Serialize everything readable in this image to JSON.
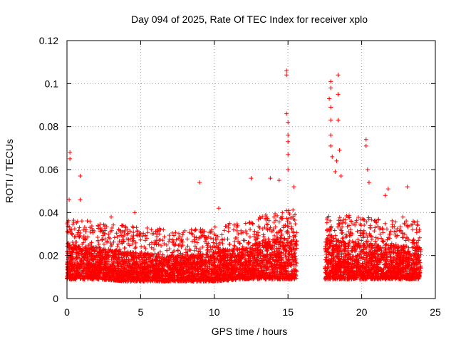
{
  "chart_data": {
    "type": "scatter",
    "title": "Day 094 of 2025, Rate Of TEC Index for receiver xplo",
    "xlabel": "GPS time / hours",
    "ylabel": "ROTI / TECUs",
    "xlim": [
      0,
      25
    ],
    "ylim": [
      0,
      0.12
    ],
    "x_ticks": [
      0,
      5,
      10,
      15,
      20,
      25
    ],
    "x_tick_labels": [
      "0",
      "5",
      "10",
      "15",
      "20",
      "25"
    ],
    "y_ticks": [
      0,
      0.02,
      0.04,
      0.06,
      0.08,
      0.1,
      0.12
    ],
    "y_tick_labels": [
      "0",
      "0.02",
      "0.04",
      "0.06",
      "0.08",
      "0.1",
      "0.12"
    ],
    "grid": true,
    "marker": "+",
    "color": "#ff0000",
    "series": [
      {
        "name": "ROTI",
        "segments": [
          {
            "x_start": 0.0,
            "x_end": 15.6,
            "typical_range": [
              0.007,
              0.025
            ]
          },
          {
            "x_start": 17.5,
            "x_end": 24.0,
            "typical_range": [
              0.007,
              0.025
            ]
          }
        ],
        "notable_points": [
          {
            "x": 0.2,
            "y": 0.068
          },
          {
            "x": 0.2,
            "y": 0.065
          },
          {
            "x": 0.15,
            "y": 0.046
          },
          {
            "x": 0.9,
            "y": 0.057
          },
          {
            "x": 0.9,
            "y": 0.046
          },
          {
            "x": 3.0,
            "y": 0.038
          },
          {
            "x": 4.6,
            "y": 0.04
          },
          {
            "x": 9.0,
            "y": 0.054
          },
          {
            "x": 10.3,
            "y": 0.042
          },
          {
            "x": 12.5,
            "y": 0.056
          },
          {
            "x": 13.8,
            "y": 0.056
          },
          {
            "x": 14.4,
            "y": 0.055
          },
          {
            "x": 14.9,
            "y": 0.106
          },
          {
            "x": 14.9,
            "y": 0.104
          },
          {
            "x": 14.9,
            "y": 0.086
          },
          {
            "x": 15.0,
            "y": 0.082
          },
          {
            "x": 15.0,
            "y": 0.076
          },
          {
            "x": 15.0,
            "y": 0.073
          },
          {
            "x": 15.0,
            "y": 0.067
          },
          {
            "x": 15.0,
            "y": 0.06
          },
          {
            "x": 15.4,
            "y": 0.052
          },
          {
            "x": 17.9,
            "y": 0.101
          },
          {
            "x": 17.9,
            "y": 0.098
          },
          {
            "x": 17.8,
            "y": 0.093
          },
          {
            "x": 17.9,
            "y": 0.089
          },
          {
            "x": 17.9,
            "y": 0.083
          },
          {
            "x": 17.9,
            "y": 0.076
          },
          {
            "x": 17.9,
            "y": 0.071
          },
          {
            "x": 18.4,
            "y": 0.104
          },
          {
            "x": 18.4,
            "y": 0.095
          },
          {
            "x": 18.4,
            "y": 0.083
          },
          {
            "x": 18.0,
            "y": 0.066
          },
          {
            "x": 18.3,
            "y": 0.064
          },
          {
            "x": 18.5,
            "y": 0.069
          },
          {
            "x": 18.2,
            "y": 0.059
          },
          {
            "x": 18.6,
            "y": 0.057
          },
          {
            "x": 20.3,
            "y": 0.074
          },
          {
            "x": 20.3,
            "y": 0.071
          },
          {
            "x": 20.4,
            "y": 0.06
          },
          {
            "x": 20.5,
            "y": 0.054
          },
          {
            "x": 21.8,
            "y": 0.051
          },
          {
            "x": 21.6,
            "y": 0.048
          },
          {
            "x": 23.1,
            "y": 0.052
          },
          {
            "x": 22.8,
            "y": 0.038
          },
          {
            "x": 23.5,
            "y": 0.036
          }
        ],
        "quiet_envelope": [
          {
            "x": 0.0,
            "y_low": 0.009,
            "y_high": 0.025
          },
          {
            "x": 2.0,
            "y_low": 0.009,
            "y_high": 0.024
          },
          {
            "x": 4.0,
            "y_low": 0.008,
            "y_high": 0.022
          },
          {
            "x": 6.0,
            "y_low": 0.008,
            "y_high": 0.021
          },
          {
            "x": 8.0,
            "y_low": 0.008,
            "y_high": 0.02
          },
          {
            "x": 10.0,
            "y_low": 0.008,
            "y_high": 0.022
          },
          {
            "x": 12.0,
            "y_low": 0.009,
            "y_high": 0.024
          },
          {
            "x": 14.0,
            "y_low": 0.009,
            "y_high": 0.028
          },
          {
            "x": 15.6,
            "y_low": 0.009,
            "y_high": 0.03
          },
          {
            "x": 17.5,
            "y_low": 0.009,
            "y_high": 0.028
          },
          {
            "x": 20.0,
            "y_low": 0.009,
            "y_high": 0.026
          },
          {
            "x": 22.0,
            "y_low": 0.009,
            "y_high": 0.025
          },
          {
            "x": 24.0,
            "y_low": 0.009,
            "y_high": 0.024
          }
        ]
      }
    ]
  }
}
